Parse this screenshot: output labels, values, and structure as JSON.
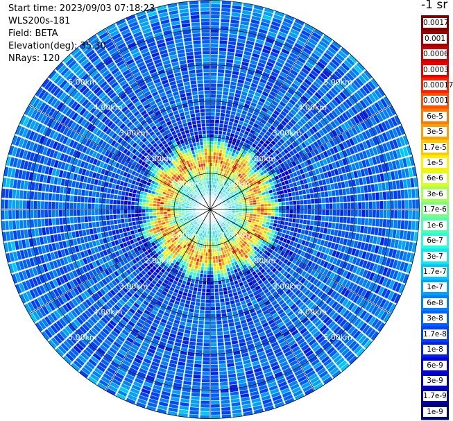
{
  "info": {
    "start_time": "Start time: 2023/09/03 07:18:23",
    "device": "WLS200s-181",
    "field": "Field: BETA",
    "elevation": "Elevation(deg): 35.30",
    "nrays": "NRays: 120"
  },
  "colorbar": {
    "unit": "-1 sr",
    "labels": [
      "0.0017",
      "0.001",
      "0.0006",
      "0.0003",
      "0.00017",
      "0.0001",
      "6e-5",
      "3e-5",
      "1.7e-5",
      "1e-5",
      "6e-6",
      "3e-6",
      "1.7e-6",
      "1e-6",
      "6e-7",
      "3e-7",
      "1.7e-7",
      "1e-7",
      "6e-8",
      "3e-8",
      "1.7e-8",
      "1e-8",
      "6e-9",
      "3e-9",
      "1.7e-9",
      "1e-9"
    ],
    "colors": [
      "#7a0000",
      "#a00000",
      "#c80000",
      "#e80000",
      "#ff2000",
      "#ff5000",
      "#ff7a00",
      "#ffa000",
      "#ffc800",
      "#fff000",
      "#d8ff20",
      "#a8ff50",
      "#78ff80",
      "#50ffb0",
      "#28ffd8",
      "#10e8f0",
      "#00c8ff",
      "#00a0ff",
      "#0080ff",
      "#0060ff",
      "#0040ff",
      "#0020f0",
      "#0000e0",
      "#0000c0",
      "#0000a0",
      "#000078"
    ]
  },
  "chart_data": {
    "type": "heatmap",
    "subtype": "polar-ppi",
    "field": "BETA",
    "unit": "-1 sr",
    "elevation_deg": 35.3,
    "n_rays": 120,
    "max_range_km": 5.8,
    "range_ring_labels": [
      "1.00km",
      "2.00km",
      "3.00km",
      "4.00km",
      "5.00km"
    ],
    "range_rings_km": [
      1,
      2,
      3,
      4,
      5
    ],
    "color_scale": "log",
    "value_range": [
      1e-09,
      0.0017
    ],
    "radial_profile": [
      {
        "range_km": 0.0,
        "value": 3e-07
      },
      {
        "range_km": 0.5,
        "value": 1.7e-07
      },
      {
        "range_km": 1.0,
        "value": 1.7e-06
      },
      {
        "range_km": 1.3,
        "value": 0.0001
      },
      {
        "range_km": 1.6,
        "value": 6e-06
      },
      {
        "range_km": 2.0,
        "value": 1e-08
      },
      {
        "range_km": 3.0,
        "value": 3e-08
      },
      {
        "range_km": 4.0,
        "value": 3e-08
      },
      {
        "range_km": 5.0,
        "value": 3e-08
      },
      {
        "range_km": 5.8,
        "value": 6e-08
      }
    ]
  }
}
